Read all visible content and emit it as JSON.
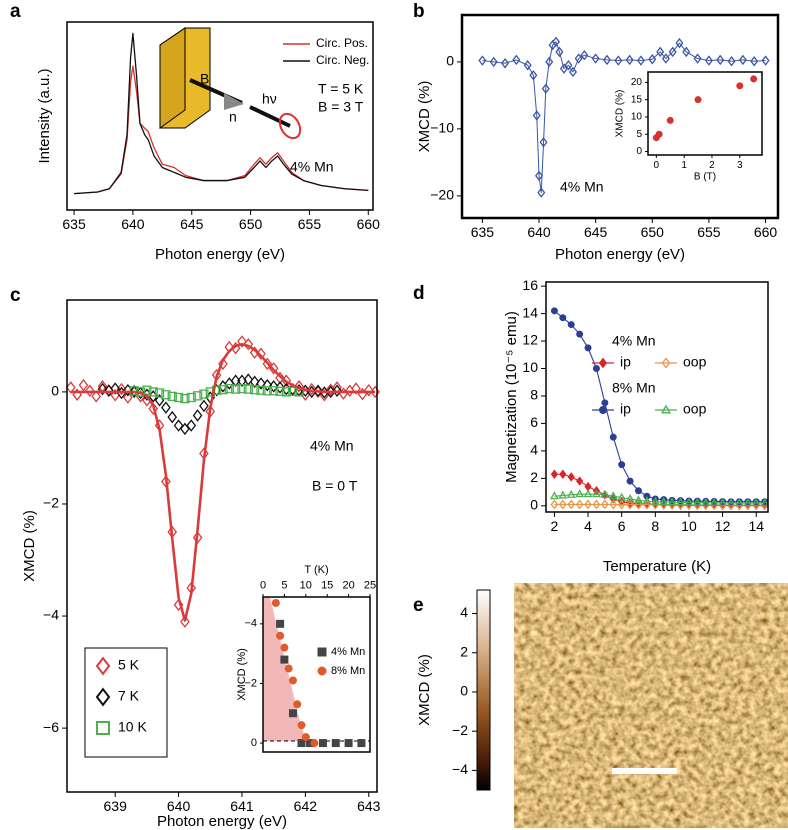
{
  "chart_data": [
    {
      "type": "line",
      "label": "a",
      "xlabel": "Photon energy (eV)",
      "ylabel": "Intensity (a.u.)",
      "x": [
        635,
        637,
        638,
        639,
        639.5,
        639.8,
        640.0,
        640.3,
        640.6,
        641,
        641.3,
        641.8,
        642.5,
        643.5,
        644.5,
        646,
        648,
        649.5,
        650.3,
        650.8,
        651.3,
        651.8,
        652.3,
        652.8,
        653.5,
        654.5,
        656,
        658,
        660
      ],
      "series": [
        {
          "name": "Circ. Pos.",
          "color": "#d9312f",
          "values": [
            0.02,
            0.03,
            0.05,
            0.14,
            0.35,
            0.7,
            0.8,
            0.65,
            0.45,
            0.42,
            0.4,
            0.3,
            0.2,
            0.18,
            0.13,
            0.1,
            0.1,
            0.13,
            0.2,
            0.24,
            0.2,
            0.24,
            0.27,
            0.22,
            0.15,
            0.1,
            0.07,
            0.05,
            0.04
          ]
        },
        {
          "name": "Circ. Neg.",
          "color": "#111111",
          "values": [
            0.02,
            0.03,
            0.05,
            0.15,
            0.38,
            0.85,
            1.0,
            0.75,
            0.45,
            0.38,
            0.35,
            0.25,
            0.18,
            0.15,
            0.12,
            0.1,
            0.1,
            0.12,
            0.18,
            0.22,
            0.18,
            0.22,
            0.25,
            0.2,
            0.14,
            0.1,
            0.07,
            0.05,
            0.04
          ]
        }
      ],
      "xlim": [
        634.4,
        660.4
      ],
      "xticks": [
        635,
        640,
        645,
        650,
        655,
        660
      ],
      "ylim": [
        -0.08,
        1.07
      ],
      "annotations": [
        "B",
        "n",
        "hν",
        "T = 5 K",
        "B = 3 T",
        "4% Mn"
      ]
    },
    {
      "type": "line",
      "label": "b",
      "xlabel": "Photon energy (eV)",
      "ylabel": "XMCD (%)",
      "x": [
        635,
        636,
        637,
        638,
        639,
        639.5,
        639.8,
        640.0,
        640.2,
        640.4,
        640.6,
        640.9,
        641.2,
        641.5,
        641.8,
        642.2,
        642.6,
        643,
        643.5,
        644,
        645,
        646,
        647,
        648,
        649,
        650,
        650.7,
        651.2,
        651.8,
        652.4,
        653,
        654,
        655,
        656,
        657,
        658,
        659,
        660
      ],
      "series": [
        {
          "color": "#3a55a4",
          "marker": "diamond-open",
          "values": [
            0.2,
            0.0,
            -0.2,
            0.3,
            -0.5,
            -2,
            -8,
            -17,
            -19.5,
            -12,
            -4,
            0,
            2.5,
            3,
            1.5,
            -1,
            -0.5,
            -1.5,
            0.5,
            1,
            0.5,
            0.3,
            0.2,
            0.3,
            0.2,
            0.4,
            1.5,
            0.5,
            1.5,
            2.8,
            1.5,
            0.5,
            0.2,
            0.3,
            0.1,
            0.3,
            0.1,
            0.2
          ]
        }
      ],
      "xlim": [
        633.2,
        661.1
      ],
      "xticks": [
        635,
        640,
        645,
        650,
        655,
        660
      ],
      "ylim": [
        -23.3,
        7
      ],
      "yticks": [
        {
          "value": -20,
          "label": "−20"
        },
        {
          "value": -10,
          "label": "−10"
        },
        0
      ],
      "annotations": [
        "4% Mn"
      ],
      "inset": {
        "type": "scatter",
        "xlabel": "B (T)",
        "ylabel": "XMCD (%)",
        "x": [
          0,
          0.1,
          0.5,
          1.5,
          3,
          3.5
        ],
        "series": [
          {
            "color": "#d9312f",
            "marker": "circle",
            "values": [
              4,
              5,
              9,
              15,
              19,
              21
            ]
          }
        ],
        "xlim": [
          -0.3,
          3.8
        ],
        "xticks": [
          0,
          1,
          2,
          3
        ],
        "ylim": [
          -1,
          23
        ],
        "yticks": [
          0,
          5,
          10,
          15,
          20
        ]
      }
    },
    {
      "type": "scatter",
      "label": "c",
      "xlabel": "Photon energy (eV)",
      "ylabel": "XMCD (%)",
      "x": [
        638.3,
        638.4,
        638.5,
        638.6,
        638.7,
        638.8,
        638.9,
        639.0,
        639.1,
        639.2,
        639.3,
        639.4,
        639.5,
        639.6,
        639.7,
        639.8,
        639.9,
        640.0,
        640.1,
        640.2,
        640.3,
        640.4,
        640.5,
        640.6,
        640.7,
        640.8,
        640.9,
        641.0,
        641.1,
        641.2,
        641.3,
        641.4,
        641.5,
        641.6,
        641.7,
        641.8,
        641.9,
        642.0,
        642.1,
        642.2,
        642.3,
        642.4,
        642.5,
        642.6,
        642.7,
        642.8,
        642.9,
        643.0,
        643.1
      ],
      "series": [
        {
          "name": "5 K",
          "color": "#d93a3a",
          "marker": "diamond-open",
          "values": [
            0.08,
            -0.05,
            0.12,
            0.02,
            -0.08,
            0.1,
            0.03,
            -0.06,
            0.05,
            -0.1,
            0.02,
            -0.08,
            -0.15,
            -0.3,
            -0.6,
            -1.6,
            -2.5,
            -3.8,
            -4.1,
            -3.5,
            -2.6,
            -1.1,
            -0.35,
            0.3,
            0.5,
            0.8,
            0.78,
            0.9,
            0.85,
            0.7,
            0.68,
            0.5,
            0.42,
            0.25,
            0.2,
            0.05,
            0.1,
            -0.05,
            0.05,
            0.0,
            -0.06,
            0.04,
            0.08,
            -0.03,
            0.02,
            0.06,
            -0.04,
            0.03,
            0.0
          ]
        },
        {
          "name": "7 K",
          "color": "#111111",
          "marker": "diamond-open",
          "values": [
            null,
            null,
            null,
            null,
            null,
            0.05,
            0.02,
            0.06,
            -0.02,
            0.03,
            0.0,
            -0.02,
            -0.05,
            -0.08,
            -0.15,
            -0.28,
            -0.45,
            -0.6,
            -0.66,
            -0.6,
            -0.42,
            -0.25,
            -0.1,
            0.03,
            0.1,
            0.15,
            0.2,
            0.2,
            0.22,
            0.18,
            0.15,
            0.12,
            0.1,
            0.08,
            0.05,
            0.04,
            0.03,
            0.02,
            0.0,
            0.02,
            -0.01,
            0.0,
            0.02,
            null,
            null,
            null,
            null,
            null,
            null
          ]
        },
        {
          "name": "10 K",
          "color": "#4caf50",
          "marker": "square-open",
          "values": [
            null,
            null,
            null,
            null,
            null,
            null,
            null,
            null,
            null,
            null,
            0.02,
            0.0,
            0.03,
            0.0,
            -0.02,
            -0.05,
            -0.08,
            -0.1,
            -0.12,
            -0.1,
            -0.07,
            -0.04,
            0.0,
            0.03,
            0.04,
            0.06,
            0.05,
            0.06,
            0.05,
            0.04,
            0.03,
            0.02,
            0.02,
            0.01,
            0.0,
            0.01,
            0.0,
            null,
            null,
            null,
            null,
            null,
            null,
            null,
            null,
            null,
            null,
            null,
            null
          ]
        }
      ],
      "fit": {
        "color": "#d93a3a",
        "values": [
          0,
          0,
          0,
          0,
          0,
          0,
          0,
          0,
          0,
          0,
          0,
          -0.02,
          -0.07,
          -0.24,
          -0.67,
          -1.49,
          -2.62,
          -3.67,
          -4.08,
          -3.6,
          -2.46,
          -1.22,
          -0.29,
          0.27,
          0.57,
          0.73,
          0.82,
          0.85,
          0.82,
          0.75,
          0.64,
          0.52,
          0.39,
          0.28,
          0.18,
          0.12,
          0.07,
          0.04,
          0.02,
          0.01,
          0,
          0,
          0,
          0,
          0,
          0,
          0,
          0,
          0
        ]
      },
      "xlim": [
        638.24,
        643.13
      ],
      "xticks": [
        639,
        640,
        641,
        642,
        643
      ],
      "ylim": [
        -7.14,
        1.64
      ],
      "yticks": [
        {
          "value": -6,
          "label": "−6"
        },
        {
          "value": -4,
          "label": "−4"
        },
        {
          "value": -2,
          "label": "−2"
        },
        0
      ],
      "annotations": [
        "4% Mn",
        "B = 0 T"
      ],
      "inset": {
        "type": "scatter",
        "xlabel": "T (K)",
        "ylabel": "XMCD (%)",
        "series": [
          {
            "name": "4% Mn",
            "color": "#444444",
            "marker": "square",
            "x": [
              4,
              5,
              7,
              9,
              11,
              14,
              17,
              20,
              23
            ],
            "values": [
              -4,
              -2.8,
              -1,
              0,
              0,
              0,
              0,
              0,
              0
            ]
          },
          {
            "name": "8% Mn",
            "color": "#e05a2b",
            "marker": "circle",
            "x": [
              3,
              4,
              5,
              6,
              7,
              8,
              9,
              10,
              12
            ],
            "values": [
              -4.7,
              -3.6,
              -3.2,
              -2.5,
              -2.1,
              -1.3,
              -0.6,
              -0.2,
              0
            ]
          }
        ],
        "xlim": [
          0,
          25
        ],
        "xticks": [
          0,
          5,
          10,
          15,
          20,
          25
        ],
        "ylim": [
          0.3,
          -4.9
        ],
        "yticks": [
          0,
          {
            "value": -2,
            "label": "−2"
          },
          {
            "value": -4,
            "label": "−4"
          }
        ]
      }
    },
    {
      "type": "line",
      "label": "d",
      "xlabel": "Temperature (K)",
      "ylabel": "Magnetization (10⁻⁵ emu)",
      "x": [
        2,
        2.5,
        3,
        3.5,
        4,
        4.5,
        5,
        5.5,
        6,
        6.5,
        7,
        7.5,
        8,
        8.5,
        9,
        9.5,
        10,
        10.5,
        11,
        11.5,
        12,
        12.5,
        13,
        13.5,
        14,
        14.5
      ],
      "legend_titles": [
        "4% Mn",
        "8% Mn"
      ],
      "series": [
        {
          "name": "ip",
          "color": "#d7262b",
          "marker": "diamond",
          "values": [
            2.3,
            2.3,
            2.1,
            1.8,
            1.4,
            1.1,
            0.8,
            0.5,
            0.3,
            0.2,
            0.15,
            0.1,
            0.08,
            0.06,
            0.05,
            0.04,
            0.04,
            0.03,
            0.03,
            0.03,
            0.02,
            0.02,
            0.02,
            0.02,
            0.02,
            0.02
          ]
        },
        {
          "name": "oop",
          "color": "#e8954a",
          "marker": "diamond-open",
          "values": [
            0.1,
            0.1,
            0.1,
            0.1,
            0.1,
            0.1,
            0.1,
            0.1,
            0.08,
            0.08,
            0.08,
            0.08,
            0.08,
            0.08,
            0.08,
            0.08,
            0.06,
            0.06,
            0.06,
            0.06,
            0.06,
            0.06,
            0.06,
            0.06,
            0.06,
            0.06
          ]
        },
        {
          "name": "ip",
          "color": "#2b3f96",
          "marker": "circle",
          "values": [
            14.2,
            13.7,
            13.2,
            12.5,
            11.5,
            10,
            7.5,
            5,
            3,
            1.8,
            1.1,
            0.7,
            0.5,
            0.45,
            0.4,
            0.38,
            0.35,
            0.34,
            0.33,
            0.32,
            0.31,
            0.3,
            0.3,
            0.3,
            0.3,
            0.3
          ]
        },
        {
          "name": "oop",
          "color": "#4caf50",
          "marker": "triangle-open",
          "values": [
            0.7,
            0.75,
            0.8,
            0.85,
            0.85,
            0.85,
            0.8,
            0.7,
            0.6,
            0.5,
            0.4,
            0.35,
            0.3,
            0.28,
            0.26,
            0.25,
            0.24,
            0.23,
            0.22,
            0.22,
            0.21,
            0.2,
            0.2,
            0.2,
            0.2,
            0.2
          ]
        }
      ],
      "xlim": [
        1.5,
        14.7
      ],
      "xticks": [
        2,
        4,
        6,
        8,
        10,
        12,
        14
      ],
      "ylim": [
        -0.45,
        16.3
      ],
      "yticks": [
        0,
        2,
        4,
        6,
        8,
        10,
        12,
        14,
        16
      ]
    },
    {
      "type": "image",
      "label": "e",
      "colorbar": {
        "label": "XMCD (%)",
        "lim": [
          -5,
          5.2
        ],
        "ticks": [
          {
            "value": -4,
            "label": "−4"
          },
          {
            "value": -2,
            "label": "−2"
          },
          0,
          2,
          4
        ]
      }
    }
  ]
}
